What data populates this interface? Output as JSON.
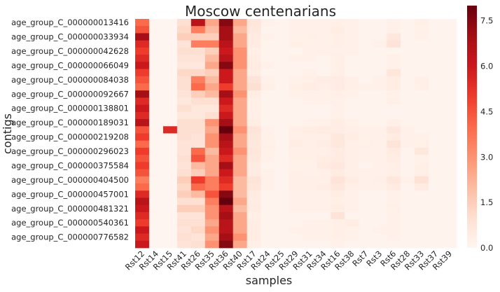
{
  "chart_data": {
    "type": "heatmap",
    "title": "Moscow centenarians",
    "xlabel": "samples",
    "ylabel": "contigs",
    "x_tick_labels": [
      "Rst12",
      "Rst14",
      "Rst15",
      "Rst41",
      "Rst26",
      "Rst35",
      "Rst36",
      "Rst40",
      "Rst17",
      "Rst24",
      "Rst25",
      "Rst29",
      "Rst31",
      "Rst34",
      "Rst16",
      "Rst38",
      "Rst7",
      "Rst3",
      "Rst6",
      "Rst28",
      "Rst33",
      "Rst37",
      "Rst39"
    ],
    "y_tick_labels": [
      "age_group_C_000000013416",
      "age_group_C_000000033934",
      "age_group_C_000000042628",
      "age_group_C_000000066049",
      "age_group_C_000000084038",
      "age_group_C_000000092667",
      "age_group_C_000000138801",
      "age_group_C_000000189031",
      "age_group_C_000000219208",
      "age_group_C_000000296023",
      "age_group_C_000000375584",
      "age_group_C_000000404500",
      "age_group_C_000000457001",
      "age_group_C_000000481321",
      "age_group_C_000000540361",
      "age_group_C_000000776582"
    ],
    "num_columns": 23,
    "rows_per_label": 2,
    "colorbar": {
      "min": 0.0,
      "max": 8.0,
      "ticks": [
        "0.0",
        "1.5",
        "3.0",
        "4.5",
        "6.0",
        "7.5"
      ],
      "tick_values": [
        0.0,
        1.5,
        3.0,
        4.5,
        6.0,
        7.5
      ],
      "colormap": "Reds"
    },
    "values": [
      [
        4.0,
        0,
        0,
        1.0,
        6.5,
        2.5,
        7.5,
        2.5,
        0.7,
        0.2,
        0.1,
        0.2,
        0.2,
        0.2,
        0.3,
        0.2,
        0.1,
        0.1,
        0.2,
        0.1,
        0.3,
        0.1,
        0.1
      ],
      [
        4.5,
        0,
        0,
        1.2,
        3.5,
        2.0,
        7.0,
        2.0,
        0.6,
        0.1,
        0.1,
        0.2,
        0.2,
        0.2,
        0.4,
        0.2,
        0.1,
        0.1,
        0.2,
        0.1,
        0.2,
        0.1,
        0.1
      ],
      [
        7.0,
        0,
        0,
        1.5,
        1.5,
        1.5,
        7.0,
        2.5,
        0.5,
        0.2,
        0.1,
        0.2,
        0.3,
        0.2,
        0.3,
        0.2,
        0.1,
        0.1,
        0.6,
        0.1,
        0.2,
        0.1,
        0.1
      ],
      [
        5.5,
        0,
        0,
        0.8,
        3.5,
        3.5,
        6.5,
        2.5,
        0.5,
        0.1,
        0.1,
        0.3,
        0.2,
        0.2,
        0.3,
        0.2,
        0.1,
        0.2,
        0.8,
        0.1,
        0.1,
        0.1,
        0.1
      ],
      [
        5.0,
        0,
        0,
        1.0,
        1.0,
        1.5,
        6.0,
        3.0,
        0.3,
        0.1,
        0.1,
        0.1,
        0.2,
        0.2,
        0.2,
        0.2,
        0.1,
        0.1,
        0.1,
        0.1,
        0.1,
        0.1,
        0.1
      ],
      [
        5.5,
        0,
        0,
        0.8,
        0.8,
        2.0,
        6.5,
        3.0,
        0.4,
        0.1,
        0.1,
        0.2,
        0.2,
        0.1,
        0.3,
        0.1,
        0.1,
        0.1,
        0.2,
        0.1,
        0.1,
        0.1,
        0.1
      ],
      [
        6.0,
        0,
        0,
        0.6,
        0.6,
        2.5,
        7.5,
        3.0,
        0.5,
        0.2,
        0.1,
        0.1,
        0.1,
        0.1,
        0.3,
        0.1,
        0.1,
        0.1,
        0.2,
        0.1,
        0.1,
        0.1,
        0.1
      ],
      [
        5.0,
        0,
        0,
        1.2,
        1.2,
        1.5,
        6.0,
        2.5,
        0.4,
        0.1,
        0.1,
        0.1,
        0.2,
        0.1,
        0.3,
        0.1,
        0.1,
        0.1,
        0.7,
        0.1,
        0.1,
        0.1,
        0.1
      ],
      [
        4.5,
        0,
        0,
        1.0,
        3.5,
        2.0,
        6.0,
        2.5,
        0.8,
        0.2,
        0.1,
        0.2,
        0.3,
        0.4,
        0.5,
        0.3,
        0.1,
        0.2,
        0.4,
        0.1,
        0.3,
        0.1,
        0.1
      ],
      [
        4.0,
        0,
        0,
        1.0,
        4.0,
        2.5,
        5.0,
        2.5,
        1.0,
        0.3,
        0.1,
        0.3,
        0.4,
        0.3,
        0.5,
        0.3,
        0.2,
        0.2,
        0.4,
        0.1,
        0.3,
        0.1,
        0.1
      ],
      [
        7.0,
        0,
        0,
        0.8,
        1.5,
        2.0,
        7.0,
        3.0,
        0.4,
        0.1,
        0.1,
        0.2,
        0.2,
        0.2,
        0.3,
        0.2,
        0.1,
        0.1,
        0.2,
        0.1,
        0.1,
        0.1,
        0.1
      ],
      [
        5.5,
        0,
        0,
        0.6,
        1.0,
        1.0,
        6.0,
        2.5,
        0.3,
        0.1,
        0.1,
        0.1,
        0.2,
        0.2,
        0.2,
        0.1,
        0.1,
        0.1,
        0.3,
        0.1,
        0.1,
        0.1,
        0.1
      ],
      [
        6.0,
        0,
        0,
        1.0,
        0.6,
        0.6,
        5.5,
        2.5,
        0.3,
        0.1,
        0.1,
        0.1,
        0.1,
        0.1,
        0.2,
        0.1,
        0.1,
        0.1,
        0.1,
        0.1,
        0.1,
        0.1,
        0.1
      ],
      [
        5.5,
        0,
        0,
        0.6,
        0.6,
        1.0,
        6.0,
        2.5,
        0.3,
        0.1,
        0.1,
        0.1,
        0.1,
        0.1,
        0.2,
        0.1,
        0.1,
        0.1,
        0.1,
        0.1,
        0.1,
        0.1,
        0.1
      ],
      [
        6.5,
        0,
        0,
        1.0,
        1.0,
        3.0,
        7.0,
        2.5,
        0.4,
        0.1,
        0.1,
        0.1,
        0.2,
        0.2,
        0.4,
        0.2,
        0.1,
        0.1,
        0.3,
        0.1,
        0.1,
        0.1,
        0.1
      ],
      [
        4.5,
        0,
        5.5,
        1.0,
        1.0,
        2.5,
        8.0,
        3.0,
        0.8,
        0.2,
        0.1,
        0.3,
        0.4,
        0.5,
        0.4,
        0.3,
        0.2,
        0.2,
        0.6,
        0.2,
        0.1,
        0.1,
        0.1
      ],
      [
        5.0,
        0,
        0,
        1.0,
        0.8,
        3.0,
        7.0,
        2.5,
        0.7,
        0.2,
        0.1,
        0.3,
        0.3,
        0.3,
        0.6,
        0.4,
        0.2,
        0.2,
        0.5,
        0.2,
        0.2,
        0.1,
        0.1
      ],
      [
        4.0,
        0,
        0,
        0.8,
        0.8,
        3.0,
        6.5,
        2.5,
        0.6,
        0.3,
        0.1,
        0.4,
        0.3,
        0.4,
        0.6,
        0.3,
        0.3,
        0.2,
        0.8,
        0.2,
        0.3,
        0.1,
        0.1
      ],
      [
        5.0,
        0,
        0,
        0.8,
        4.0,
        2.0,
        6.0,
        3.0,
        0.7,
        0.2,
        0.1,
        0.3,
        0.3,
        0.3,
        0.5,
        0.3,
        0.2,
        0.2,
        0.5,
        0.1,
        0.6,
        0.1,
        0.1
      ],
      [
        4.5,
        0,
        0,
        1.0,
        4.5,
        2.5,
        5.5,
        2.5,
        0.6,
        0.2,
        0.1,
        0.3,
        0.3,
        0.4,
        0.5,
        0.3,
        0.2,
        0.2,
        0.4,
        0.1,
        0.2,
        0.1,
        0.1
      ],
      [
        5.0,
        0,
        0,
        0.8,
        2.0,
        2.5,
        7.0,
        2.5,
        0.5,
        0.1,
        0.1,
        0.2,
        0.2,
        0.5,
        0.6,
        0.3,
        0.1,
        0.2,
        0.3,
        0.1,
        0.3,
        0.1,
        0.1
      ],
      [
        4.5,
        0,
        0,
        1.0,
        1.5,
        2.5,
        6.0,
        2.5,
        0.5,
        0.2,
        0.1,
        0.3,
        0.2,
        0.3,
        0.5,
        0.3,
        0.2,
        0.2,
        0.3,
        0.1,
        0.3,
        0.1,
        0.1
      ],
      [
        3.5,
        0,
        0,
        1.5,
        5.0,
        3.5,
        5.5,
        2.0,
        0.8,
        0.2,
        0.1,
        0.3,
        0.3,
        0.3,
        0.8,
        0.4,
        0.2,
        0.3,
        0.6,
        0.2,
        0.9,
        0.1,
        0.1
      ],
      [
        4.0,
        0,
        0,
        1.2,
        4.0,
        3.5,
        5.0,
        2.0,
        0.7,
        0.2,
        0.1,
        0.3,
        0.3,
        0.4,
        0.6,
        0.3,
        0.2,
        0.2,
        0.5,
        0.1,
        0.5,
        0.1,
        0.1
      ],
      [
        5.5,
        0,
        0,
        1.5,
        2.0,
        4.5,
        7.5,
        2.0,
        0.5,
        0.1,
        0.1,
        0.2,
        0.2,
        0.2,
        0.4,
        0.2,
        0.1,
        0.1,
        0.2,
        0.1,
        0.1,
        0.1,
        0.1
      ],
      [
        6.5,
        0,
        0,
        1.0,
        1.0,
        3.5,
        8.0,
        2.5,
        0.4,
        0.1,
        0.1,
        0.2,
        0.2,
        0.2,
        0.3,
        0.2,
        0.1,
        0.1,
        0.2,
        0.1,
        0.1,
        0.1,
        0.1
      ],
      [
        6.0,
        0,
        0,
        1.5,
        1.5,
        3.0,
        6.5,
        2.0,
        0.5,
        0.1,
        0.1,
        0.2,
        0.2,
        0.2,
        0.4,
        0.2,
        0.1,
        0.1,
        0.3,
        0.1,
        0.1,
        0.1,
        0.1
      ],
      [
        5.5,
        0,
        0,
        0.8,
        0.8,
        3.0,
        7.0,
        2.5,
        0.3,
        0.1,
        0.1,
        0.1,
        0.1,
        0.1,
        0.8,
        0.1,
        0.1,
        0.1,
        0.2,
        0.1,
        0.1,
        0.1,
        0.1
      ],
      [
        5.0,
        0,
        0,
        1.0,
        1.0,
        2.5,
        6.5,
        2.5,
        0.4,
        0.1,
        0.1,
        0.1,
        0.2,
        0.2,
        0.3,
        0.4,
        0.1,
        0.1,
        0.2,
        0.1,
        0.1,
        0.1,
        0.1
      ],
      [
        6.0,
        0,
        0,
        0.8,
        1.2,
        3.0,
        6.5,
        2.5,
        0.4,
        0.1,
        0.1,
        0.2,
        0.2,
        0.2,
        0.3,
        0.2,
        0.1,
        0.2,
        0.2,
        0.1,
        0.1,
        0.1,
        0.1
      ],
      [
        5.5,
        0,
        0,
        1.0,
        0.8,
        2.5,
        7.0,
        3.0,
        0.4,
        0.1,
        0.1,
        0.1,
        0.2,
        0.2,
        0.3,
        0.2,
        0.1,
        0.1,
        0.2,
        0.1,
        0.1,
        0.1,
        0.1
      ],
      [
        6.0,
        0,
        0,
        0.8,
        1.0,
        3.0,
        7.5,
        2.5,
        0.3,
        0.1,
        0.1,
        0.1,
        0.1,
        0.1,
        0.2,
        0.1,
        0.1,
        0.1,
        0.1,
        0.1,
        0.1,
        0.1,
        0.1
      ]
    ]
  }
}
